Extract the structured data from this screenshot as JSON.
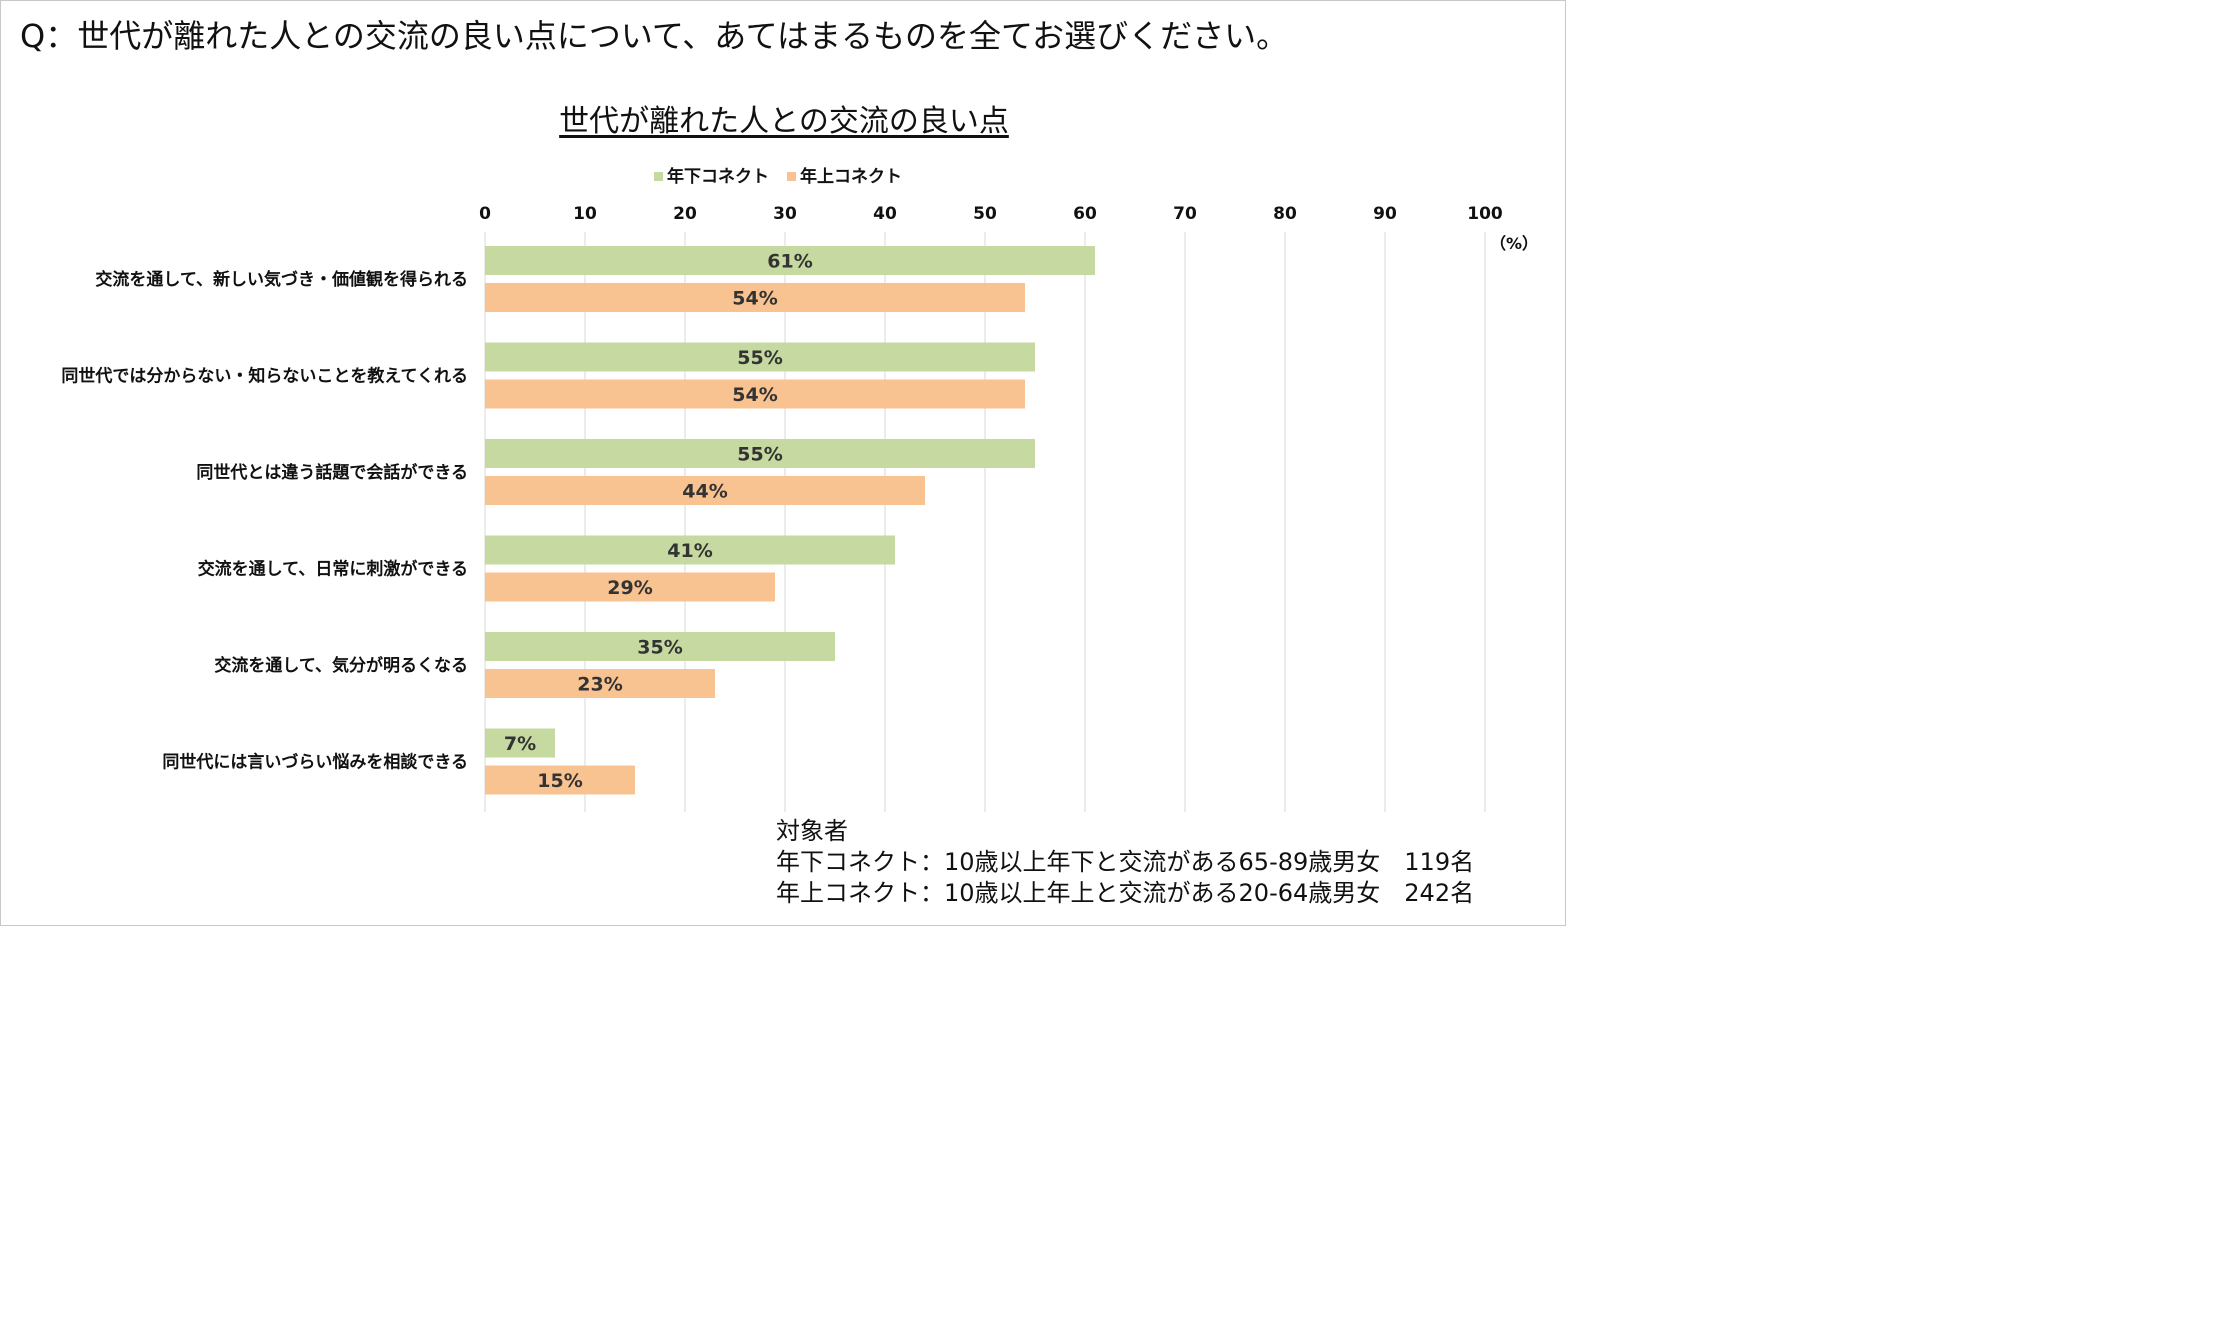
{
  "question": "Q：世代が離れた人との交流の良い点について、あてはまるものを全てお選びください。",
  "unit_label": "（%）",
  "colors": {
    "series1": "#c5d9a0",
    "series2": "#f9c291",
    "grid": "#d9d9d9",
    "text": "#111111",
    "label": "#333333"
  },
  "chart_data": {
    "type": "bar",
    "orientation": "horizontal",
    "title": "世代が離れた人との交流の良い点",
    "categories": [
      "交流を通して、新しい気づき・価値観を得られる",
      "同世代では分からない・知らないことを教えてくれる",
      "同世代とは違う話題で会話ができる",
      "交流を通して、日常に刺激ができる",
      "交流を通して、気分が明るくなる",
      "同世代には言いづらい悩みを相談できる"
    ],
    "series": [
      {
        "name": "年下コネクト",
        "values": [
          61,
          55,
          55,
          41,
          35,
          7
        ],
        "labels": [
          "61%",
          "55%",
          "55%",
          "41%",
          "35%",
          "7%"
        ]
      },
      {
        "name": "年上コネクト",
        "values": [
          54,
          54,
          44,
          29,
          23,
          15
        ],
        "labels": [
          "54%",
          "54%",
          "44%",
          "29%",
          "23%",
          "15%"
        ]
      }
    ],
    "xlim": [
      0,
      100
    ],
    "xticks": [
      0,
      10,
      20,
      30,
      40,
      50,
      60,
      70,
      80,
      90,
      100
    ],
    "grid": true,
    "legend_position": "top"
  },
  "footnote": {
    "heading": "対象者",
    "line1": "年下コネクト：10歳以上年下と交流がある65-89歳男女　119名",
    "line2": "年上コネクト：10歳以上年上と交流がある20-64歳男女　242名"
  }
}
